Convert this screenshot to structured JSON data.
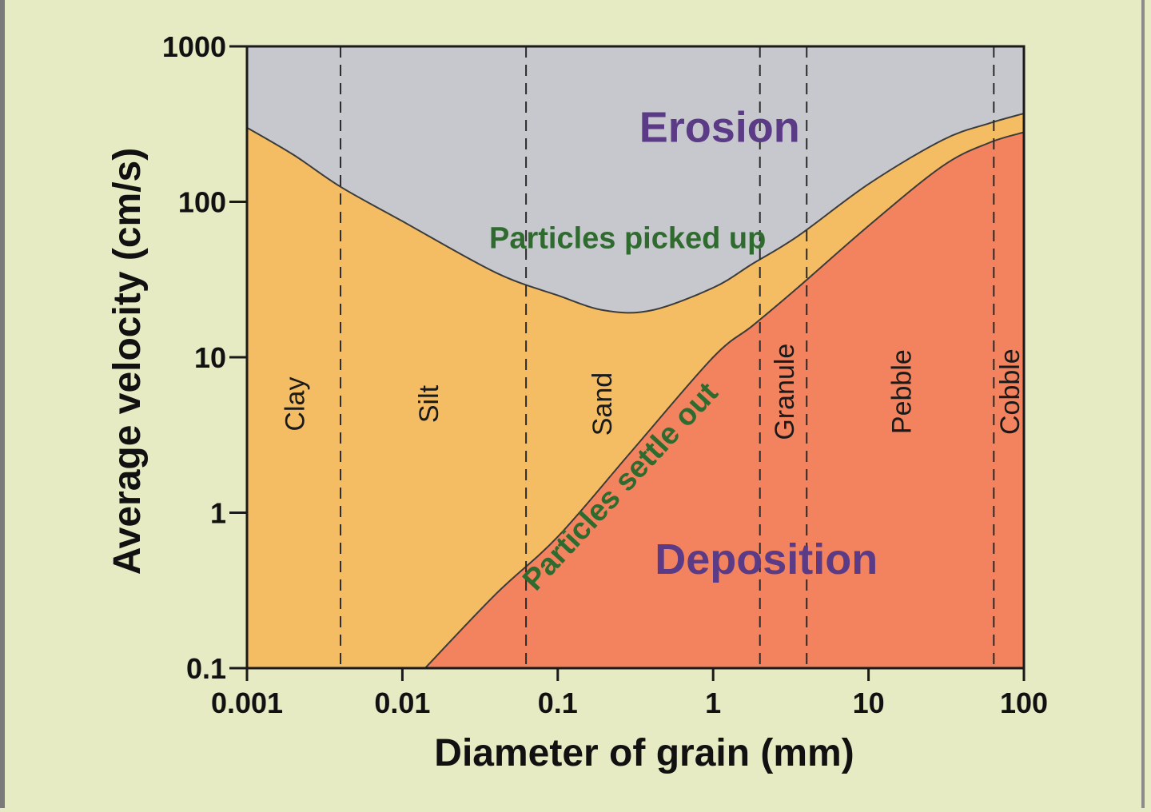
{
  "chart_data": {
    "type": "area",
    "title": "",
    "xlabel": "Diameter of grain (mm)",
    "ylabel": "Average velocity (cm/s)",
    "x_scale": "log",
    "y_scale": "log",
    "xlim": [
      0.001,
      100
    ],
    "ylim": [
      0.1,
      1000
    ],
    "x_ticks": [
      0.001,
      0.01,
      0.1,
      1,
      10,
      100
    ],
    "x_tick_labels": [
      "0.001",
      "0.01",
      "0.1",
      "1",
      "10",
      "100"
    ],
    "y_ticks": [
      0.1,
      1,
      10,
      100,
      1000
    ],
    "y_tick_labels": [
      "0.1",
      "1",
      "10",
      "100",
      "1000"
    ],
    "grid": false,
    "series": [
      {
        "name": "Particles picked up",
        "x": [
          0.001,
          0.002,
          0.004,
          0.01,
          0.04,
          0.1,
          0.2,
          0.4,
          1,
          1.8,
          3.5,
          10,
          30,
          60,
          100
        ],
        "values": [
          300,
          200,
          125,
          75,
          35,
          25,
          20,
          20,
          28,
          40,
          60,
          130,
          250,
          320,
          370
        ]
      },
      {
        "name": "Particles settle out",
        "x": [
          0.014,
          0.04,
          0.1,
          0.3,
          1,
          1.8,
          3.5,
          10,
          30,
          60,
          100
        ],
        "values": [
          0.1,
          0.3,
          0.7,
          2.5,
          10,
          16,
          28,
          70,
          170,
          240,
          280
        ]
      }
    ],
    "regions": [
      {
        "label": "Erosion",
        "color": "#c6c8cd",
        "label_x": 1.1,
        "label_y": 300
      },
      {
        "label": "Deposition",
        "color": "#f2835e",
        "label_x": 2.2,
        "label_y": 0.5
      }
    ],
    "middle_zone_color": "#f4bd63",
    "region_label_color": "#5b3a86",
    "curve_label_color": "#2f6b2f",
    "size_classes": {
      "boundaries": [
        0.004,
        0.0625,
        2,
        4,
        64
      ],
      "labels": [
        {
          "label": "Clay",
          "x": 0.002,
          "y": 5
        },
        {
          "label": "Silt",
          "x": 0.0145,
          "y": 5
        },
        {
          "label": "Sand",
          "x": 0.19,
          "y": 5
        },
        {
          "label": "Granule",
          "x": 2.83,
          "y": 6
        },
        {
          "label": "Pebble",
          "x": 16,
          "y": 6
        },
        {
          "label": "Cobble",
          "x": 80,
          "y": 6
        }
      ]
    },
    "curve_labels": [
      {
        "label": "Particles picked up",
        "x": 0.25,
        "y": 58
      },
      {
        "label": "Particles settle out",
        "x": 0.25,
        "y": 1.4
      }
    ]
  }
}
